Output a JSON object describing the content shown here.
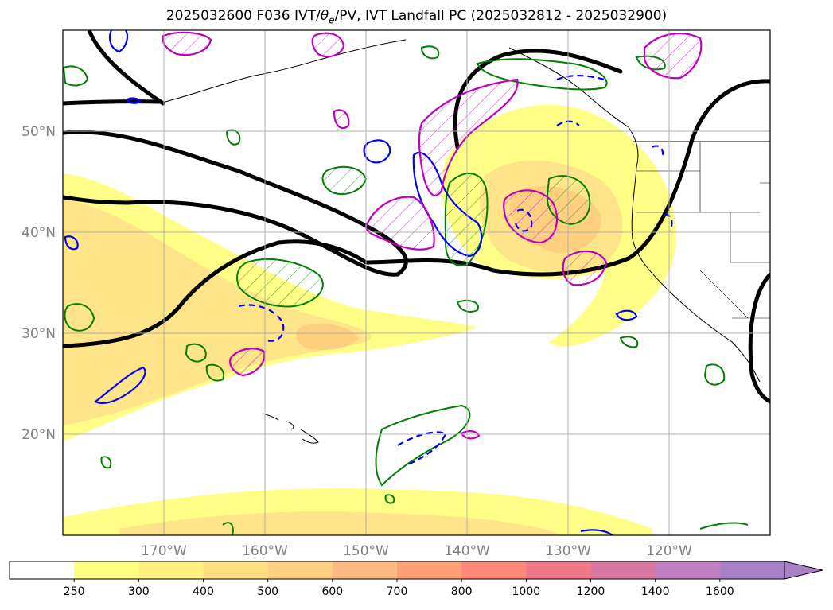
{
  "title": {
    "prefix": "2025032600 F036 IVT/",
    "theta": "θ",
    "theta_sub": "e",
    "suffix": "/PV, IVT Landfall PC (2025032812 - 2025032900)"
  },
  "map": {
    "lat_labels": [
      "50°N",
      "40°N",
      "30°N",
      "20°N"
    ],
    "lon_labels": [
      "170°W",
      "160°W",
      "150°W",
      "140°W",
      "130°W",
      "120°W"
    ],
    "grid": true
  },
  "colorbar": {
    "labels": [
      "250",
      "300",
      "400",
      "500",
      "600",
      "700",
      "800",
      "1000",
      "1200",
      "1400",
      "1600"
    ],
    "colors": [
      "#ffffff",
      "#ffff80",
      "#fff080",
      "#ffe080",
      "#ffd080",
      "#ffb880",
      "#ffa078",
      "#ff8878",
      "#f07888",
      "#d878a0",
      "#c080c0",
      "#a880c8"
    ],
    "extend": "max"
  },
  "colors": {
    "ivt_low": "#ffff88",
    "ivt_mid": "#ffe48a",
    "ivt_high": "#ffcf80",
    "theta_contour": "#008000",
    "pv_positive": "#0000ff",
    "landfall_pc": "#c000c0",
    "jet_contour": "#000000",
    "coastline": "#000000",
    "grid": "#b0b0b0"
  }
}
